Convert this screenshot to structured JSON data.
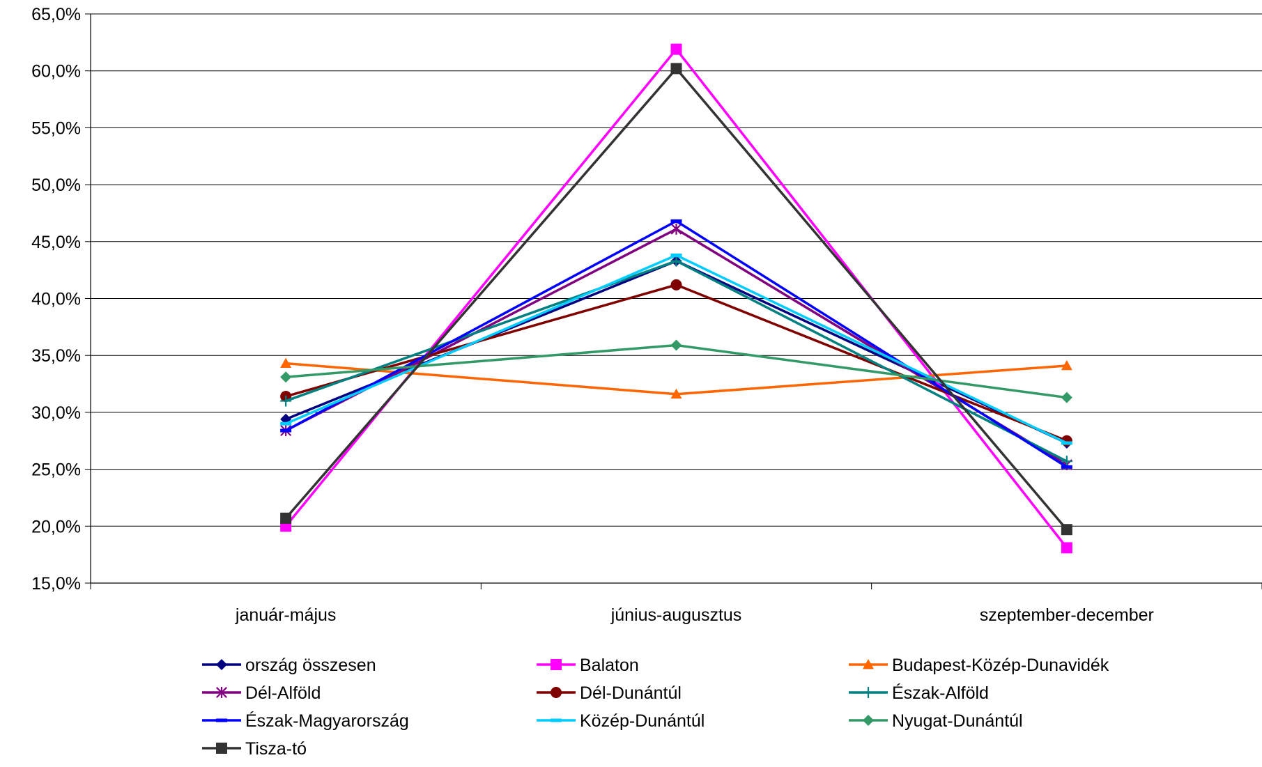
{
  "chart_data": {
    "type": "line",
    "title": "",
    "xlabel": "",
    "ylabel": "",
    "categories": [
      "január-május",
      "június-augusztus",
      "szeptember-december"
    ],
    "ylim": [
      15,
      65
    ],
    "yticks": [
      "15,0%",
      "20,0%",
      "25,0%",
      "30,0%",
      "35,0%",
      "40,0%",
      "45,0%",
      "50,0%",
      "55,0%",
      "60,0%",
      "65,0%"
    ],
    "grid": true,
    "legend_position": "bottom",
    "series": [
      {
        "name": "ország összesen",
        "values": [
          29.4,
          43.3,
          27.3
        ],
        "color": "#000080",
        "marker": "diamond"
      },
      {
        "name": "Balaton",
        "values": [
          20.0,
          61.9,
          18.1
        ],
        "color": "#FF00FF",
        "marker": "square"
      },
      {
        "name": "Budapest-Közép-Dunavidék",
        "values": [
          34.3,
          31.6,
          34.1
        ],
        "color": "#FF6600",
        "marker": "triangle"
      },
      {
        "name": "Dél-Alföld",
        "values": [
          28.4,
          46.1,
          25.4
        ],
        "color": "#800080",
        "marker": "asterisk"
      },
      {
        "name": "Dél-Dunántúl",
        "values": [
          31.4,
          41.2,
          27.5
        ],
        "color": "#800000",
        "marker": "circle"
      },
      {
        "name": "Észak-Alföld",
        "values": [
          31.0,
          43.3,
          25.7
        ],
        "color": "#008080",
        "marker": "plus"
      },
      {
        "name": "Észak-Magyarország",
        "values": [
          28.4,
          46.8,
          25.2
        ],
        "color": "#0000FF",
        "marker": "dash"
      },
      {
        "name": "Közép-Dunántúl",
        "values": [
          29.0,
          43.8,
          27.3
        ],
        "color": "#00CCFF",
        "marker": "dash"
      },
      {
        "name": "Nyugat-Dunántúl",
        "values": [
          33.1,
          35.9,
          31.3
        ],
        "color": "#339966",
        "marker": "diamond"
      },
      {
        "name": "Tisza-tó",
        "values": [
          20.7,
          60.2,
          19.7
        ],
        "color": "#333333",
        "marker": "square"
      }
    ]
  }
}
